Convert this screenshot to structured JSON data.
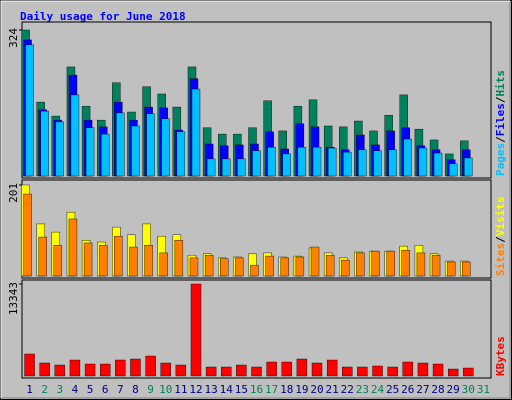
{
  "chart_data": [
    {
      "type": "bar",
      "title": "Daily usage for June 2018",
      "legend_separator": "/",
      "ylim": [
        0,
        324
      ],
      "yticks": [
        324
      ],
      "series": [
        {
          "name": "Hits",
          "color": "#00805c",
          "values": [
            324,
            164,
            133,
            242,
            155,
            124,
            207,
            142,
            198,
            182,
            153,
            242,
            107,
            93,
            93,
            107,
            167,
            100,
            155,
            169,
            111,
            109,
            122,
            100,
            135,
            180,
            104,
            80,
            49,
            78,
            null
          ]
        },
        {
          "name": "Files",
          "color": "#0000ff",
          "values": [
            302,
            147,
            124,
            224,
            124,
            109,
            164,
            124,
            153,
            151,
            102,
            216,
            71,
            67,
            69,
            71,
            98,
            60,
            116,
            109,
            64,
            58,
            91,
            69,
            100,
            107,
            67,
            58,
            36,
            58,
            null
          ]
        },
        {
          "name": "Pages",
          "color": "#00c0ff",
          "values": [
            291,
            144,
            120,
            180,
            107,
            93,
            140,
            111,
            138,
            127,
            98,
            193,
            38,
            38,
            38,
            56,
            64,
            49,
            64,
            64,
            62,
            53,
            58,
            56,
            58,
            82,
            62,
            51,
            27,
            40,
            null
          ]
        }
      ]
    },
    {
      "type": "bar",
      "ylim": [
        0,
        201
      ],
      "yticks": [
        201
      ],
      "series": [
        {
          "name": "Visits",
          "color": "#ffff00",
          "values": [
            201,
            115,
            97,
            141,
            79,
            75,
            108,
            91,
            115,
            88,
            91,
            46,
            49,
            40,
            42,
            49,
            51,
            42,
            44,
            62,
            51,
            40,
            53,
            55,
            55,
            66,
            68,
            49,
            33,
            33,
            null
          ]
        },
        {
          "name": "Sites",
          "color": "#ff8000",
          "values": [
            181,
            86,
            68,
            126,
            73,
            68,
            88,
            64,
            68,
            51,
            79,
            40,
            46,
            38,
            40,
            24,
            44,
            40,
            42,
            64,
            46,
            35,
            51,
            55,
            55,
            57,
            51,
            46,
            31,
            31,
            null
          ]
        }
      ]
    },
    {
      "type": "bar",
      "ylim": [
        0,
        13343
      ],
      "yticks": [
        13343
      ],
      "categories": [
        "1",
        "2",
        "3",
        "4",
        "5",
        "6",
        "7",
        "8",
        "9",
        "10",
        "11",
        "12",
        "13",
        "14",
        "15",
        "16",
        "17",
        "18",
        "19",
        "20",
        "21",
        "22",
        "23",
        "24",
        "25",
        "26",
        "27",
        "28",
        "29",
        "30",
        "31"
      ],
      "category_colors": [
        "#000080",
        "#00805c",
        "#00805c",
        "#000080",
        "#000080",
        "#000080",
        "#000080",
        "#000080",
        "#00805c",
        "#00805c",
        "#000080",
        "#000080",
        "#000080",
        "#000080",
        "#000080",
        "#00805c",
        "#00805c",
        "#000080",
        "#000080",
        "#000080",
        "#000080",
        "#000080",
        "#00805c",
        "#00805c",
        "#000080",
        "#000080",
        "#000080",
        "#000080",
        "#000080",
        "#00805c",
        "#00805c"
      ],
      "series": [
        {
          "name": "KBytes",
          "color": "#ff0000",
          "values": [
            3190,
            1885,
            1595,
            2320,
            1740,
            1740,
            2320,
            2465,
            2900,
            1885,
            1595,
            13343,
            1305,
            1305,
            1595,
            1305,
            2030,
            2030,
            2465,
            1885,
            2320,
            1305,
            1305,
            1450,
            1305,
            2030,
            1885,
            1740,
            1015,
            1160,
            null
          ]
        }
      ]
    }
  ]
}
